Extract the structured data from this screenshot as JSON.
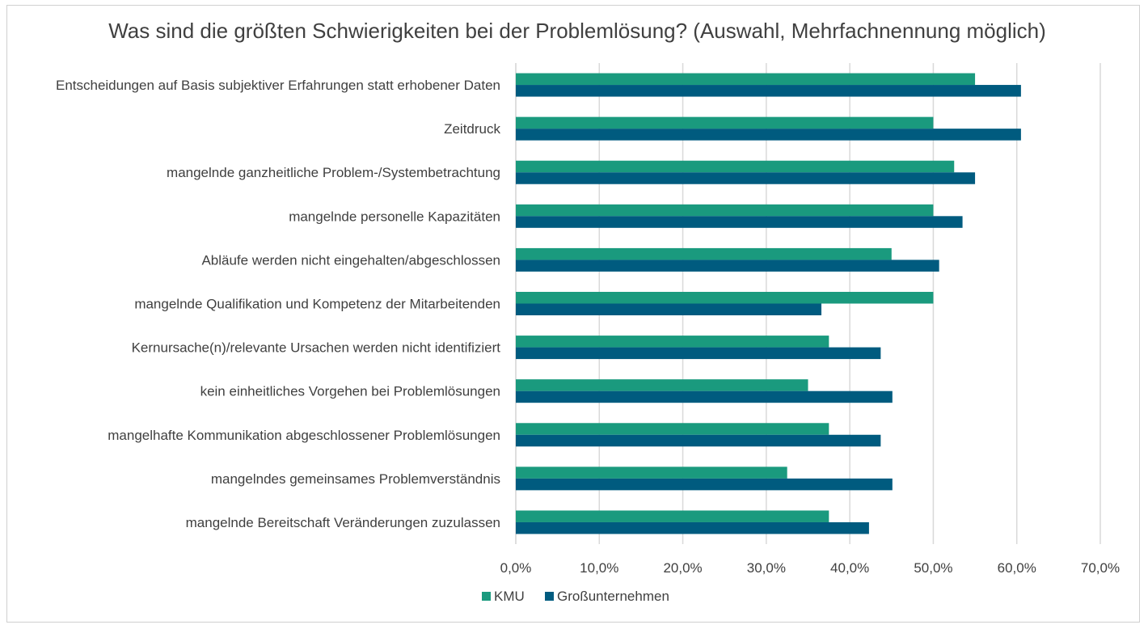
{
  "chart_data": {
    "type": "bar",
    "orientation": "horizontal",
    "title": "Was sind die größten Schwierigkeiten bei der Problemlösung? (Auswahl, Mehrfachnennung möglich)",
    "xlabel": "",
    "ylabel": "",
    "xlim": [
      0,
      70
    ],
    "tick_labels": [
      "0,0%",
      "10,0%",
      "20,0%",
      "30,0%",
      "40,0%",
      "50,0%",
      "60,0%",
      "70,0%"
    ],
    "grid": "vertical",
    "legend_position": "bottom",
    "categories": [
      "Entscheidungen auf Basis subjektiver Erfahrungen statt erhobener Daten",
      "Zeitdruck",
      "mangelnde ganzheitliche Problem-/Systembetrachtung",
      "mangelnde personelle Kapazitäten",
      "Abläufe werden nicht eingehalten/abgeschlossen",
      "mangelnde Qualifikation und Kompetenz der Mitarbeitenden",
      "Kernursache(n)/relevante Ursachen werden nicht identifiziert",
      "kein einheitliches Vorgehen bei Problemlösungen",
      "mangelhafte Kommunikation abgeschlossener Problemlösungen",
      "mangelndes gemeinsames Problemverständnis",
      "mangelnde Bereitschaft Veränderungen zuzulassen"
    ],
    "series": [
      {
        "name": "KMU",
        "color": "#1a9a7e",
        "values": [
          55.0,
          50.0,
          52.5,
          50.0,
          45.0,
          50.0,
          37.5,
          35.0,
          37.5,
          32.5,
          37.5
        ]
      },
      {
        "name": "Großunternehmen",
        "color": "#005b7f",
        "values": [
          60.5,
          60.5,
          55.0,
          53.5,
          50.7,
          36.6,
          43.7,
          45.1,
          43.7,
          45.1,
          42.3
        ]
      }
    ]
  }
}
